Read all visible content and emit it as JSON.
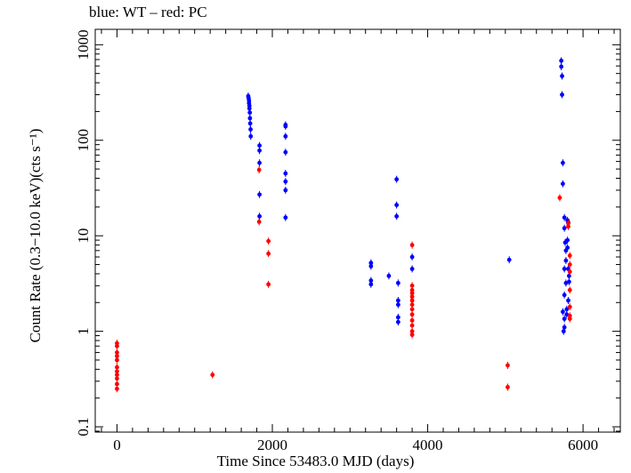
{
  "chart_data": {
    "type": "scatter",
    "title": "blue: WT – red: PC",
    "xlabel": "Time Since 53483.0 MJD (days)",
    "ylabel": "Count Rate (0.3−10.0 keV)(cts s⁻¹)",
    "xlim": [
      -280,
      6480
    ],
    "ylim": [
      0.088,
      1450
    ],
    "yscale": "log",
    "xticks": [
      0,
      2000,
      4000,
      6000
    ],
    "yticks": [
      0.1,
      1,
      10,
      100,
      1000
    ],
    "ytick_labels": [
      "0.1",
      "1",
      "10",
      "100",
      "1000"
    ],
    "legend": "none",
    "colors": {
      "WT": "#0000ff",
      "PC": "#ff0000",
      "axes": "#000000"
    },
    "series": [
      {
        "name": "WT",
        "points": [
          [
            1690,
            290
          ],
          [
            1695,
            275
          ],
          [
            1700,
            260
          ],
          [
            1700,
            245
          ],
          [
            1705,
            230
          ],
          [
            1705,
            215
          ],
          [
            1710,
            195
          ],
          [
            1712,
            170
          ],
          [
            1715,
            150
          ],
          [
            1720,
            130
          ],
          [
            1722,
            110
          ],
          [
            1835,
            88
          ],
          [
            1835,
            78
          ],
          [
            1835,
            58
          ],
          [
            1835,
            27
          ],
          [
            1835,
            16
          ],
          [
            2170,
            145
          ],
          [
            2170,
            140
          ],
          [
            2170,
            110
          ],
          [
            2170,
            75
          ],
          [
            2170,
            45
          ],
          [
            2170,
            37
          ],
          [
            2170,
            30
          ],
          [
            2170,
            15.5
          ],
          [
            3270,
            5.2
          ],
          [
            3270,
            4.8
          ],
          [
            3270,
            3.4
          ],
          [
            3270,
            3.1
          ],
          [
            3500,
            3.8
          ],
          [
            3600,
            39
          ],
          [
            3600,
            21
          ],
          [
            3600,
            16
          ],
          [
            3620,
            3.2
          ],
          [
            3620,
            2.1
          ],
          [
            3620,
            1.9
          ],
          [
            3620,
            1.4
          ],
          [
            3620,
            1.25
          ],
          [
            3800,
            6.0
          ],
          [
            3800,
            4.5
          ],
          [
            5050,
            5.6
          ],
          [
            5720,
            680
          ],
          [
            5720,
            590
          ],
          [
            5730,
            470
          ],
          [
            5730,
            300
          ],
          [
            5740,
            58
          ],
          [
            5740,
            35
          ],
          [
            5760,
            15.5
          ],
          [
            5760,
            12
          ],
          [
            5770,
            8.5
          ],
          [
            5780,
            7.0
          ],
          [
            5780,
            5.5
          ],
          [
            5760,
            4.5
          ],
          [
            5780,
            3.2
          ],
          [
            5760,
            2.4
          ],
          [
            5740,
            1.6
          ],
          [
            5760,
            1.35
          ],
          [
            5760,
            1.1
          ],
          [
            5750,
            1.0
          ],
          [
            5800,
            14.5
          ],
          [
            5810,
            13.8
          ],
          [
            5800,
            9.0
          ],
          [
            5800,
            7.5
          ],
          [
            5810,
            4.5
          ],
          [
            5820,
            3.8
          ],
          [
            5820,
            3.3
          ],
          [
            5810,
            2.1
          ],
          [
            5790,
            1.7
          ],
          [
            5790,
            1.5
          ]
        ]
      },
      {
        "name": "PC",
        "points": [
          [
            0,
            0.75
          ],
          [
            0,
            0.7
          ],
          [
            0,
            0.6
          ],
          [
            0,
            0.55
          ],
          [
            0,
            0.5
          ],
          [
            0,
            0.42
          ],
          [
            0,
            0.38
          ],
          [
            0,
            0.35
          ],
          [
            0,
            0.32
          ],
          [
            0,
            0.28
          ],
          [
            0,
            0.25
          ],
          [
            1230,
            0.35
          ],
          [
            1830,
            49
          ],
          [
            1830,
            14
          ],
          [
            1950,
            8.8
          ],
          [
            1950,
            6.5
          ],
          [
            1950,
            3.1
          ],
          [
            3800,
            8.0
          ],
          [
            3800,
            3.0
          ],
          [
            3800,
            2.7
          ],
          [
            3800,
            2.5
          ],
          [
            3800,
            2.3
          ],
          [
            3800,
            2.1
          ],
          [
            3800,
            1.9
          ],
          [
            3800,
            1.7
          ],
          [
            3800,
            1.5
          ],
          [
            3800,
            1.3
          ],
          [
            3800,
            1.15
          ],
          [
            3800,
            1.0
          ],
          [
            3800,
            0.92
          ],
          [
            5030,
            0.44
          ],
          [
            5030,
            0.26
          ],
          [
            5700,
            25
          ],
          [
            5810,
            13.5
          ],
          [
            5810,
            12.5
          ],
          [
            5830,
            6.2
          ],
          [
            5830,
            5.0
          ],
          [
            5830,
            4.2
          ],
          [
            5830,
            2.7
          ],
          [
            5830,
            1.8
          ],
          [
            5830,
            1.45
          ],
          [
            5830,
            1.35
          ]
        ]
      }
    ]
  }
}
